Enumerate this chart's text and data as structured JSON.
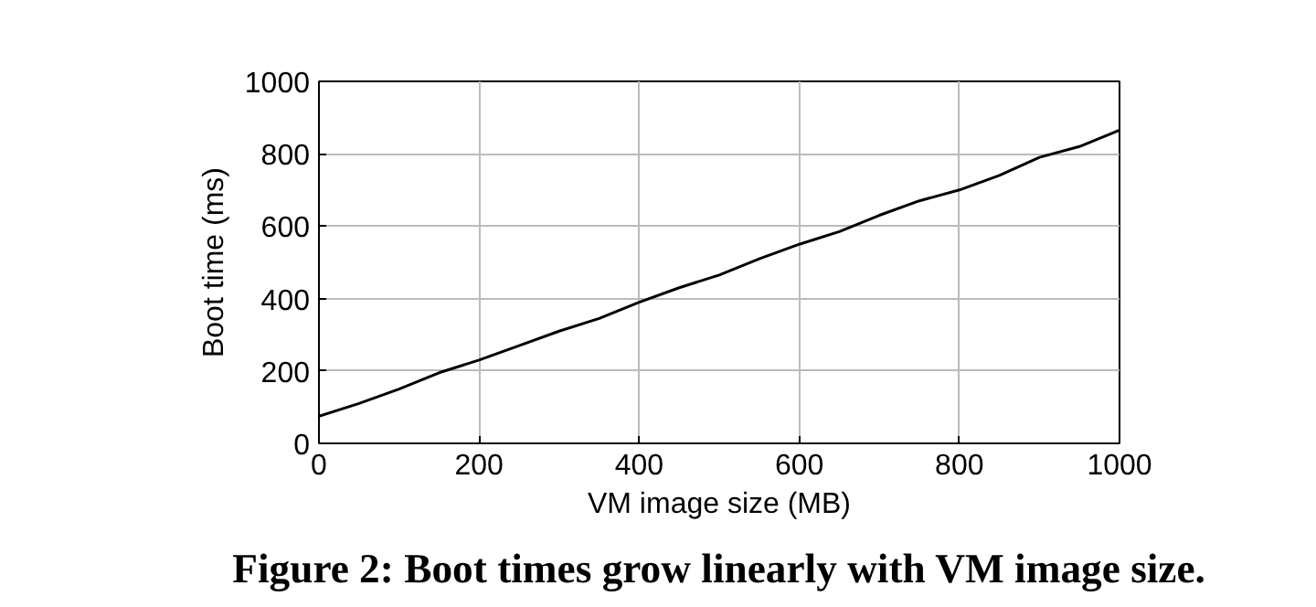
{
  "chart_data": {
    "type": "line",
    "xlabel": "VM image size (MB)",
    "ylabel": "Boot time (ms)",
    "annotations": [
      "Figure 2: Boot times grow linearly with VM image size."
    ],
    "x": [
      0,
      50,
      100,
      150,
      200,
      250,
      300,
      350,
      400,
      450,
      500,
      550,
      600,
      650,
      700,
      750,
      800,
      850,
      900,
      950,
      1000
    ],
    "series": [
      {
        "color": "#000000",
        "values": [
          75,
          110,
          150,
          195,
          230,
          270,
          310,
          345,
          390,
          430,
          465,
          510,
          550,
          585,
          630,
          670,
          700,
          740,
          790,
          820,
          865
        ]
      }
    ],
    "xlim": [
      0,
      1000
    ],
    "ylim": [
      0,
      1000
    ],
    "xticks": [
      0,
      200,
      400,
      600,
      800,
      1000
    ],
    "yticks": [
      0,
      200,
      400,
      600,
      800,
      1000
    ],
    "grid": true,
    "marker": "none",
    "line_style": "solid"
  }
}
